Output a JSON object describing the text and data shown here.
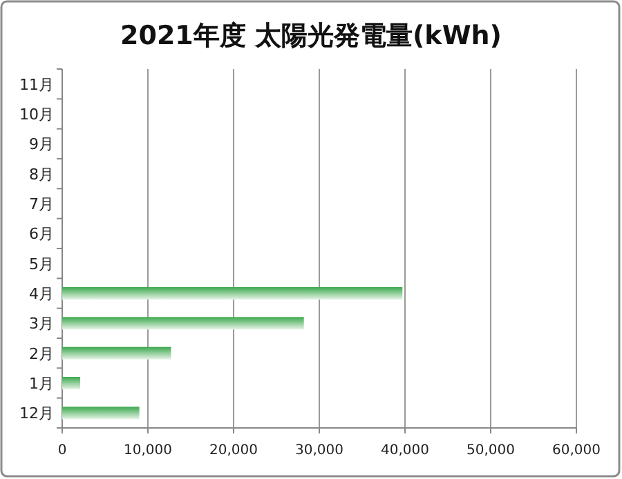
{
  "chart_data": {
    "type": "bar",
    "orientation": "horizontal",
    "title": "2021年度 太陽光発電量(kWh)",
    "categories": [
      "11月",
      "10月",
      "9月",
      "8月",
      "7月",
      "6月",
      "5月",
      "4月",
      "3月",
      "2月",
      "1月",
      "12月"
    ],
    "values": [
      null,
      null,
      null,
      null,
      null,
      null,
      null,
      39700,
      28200,
      12700,
      2100,
      9000
    ],
    "color": "#3ca84e",
    "xlim": [
      0,
      60000
    ],
    "xticks": [
      {
        "value": 0,
        "label": "0"
      },
      {
        "value": 10000,
        "label": "10,000"
      },
      {
        "value": 20000,
        "label": "20,000"
      },
      {
        "value": 30000,
        "label": "30,000"
      },
      {
        "value": 40000,
        "label": "40,000"
      },
      {
        "value": 50000,
        "label": "50,000"
      },
      {
        "value": 60000,
        "label": "60,000"
      }
    ],
    "grid": "x"
  }
}
